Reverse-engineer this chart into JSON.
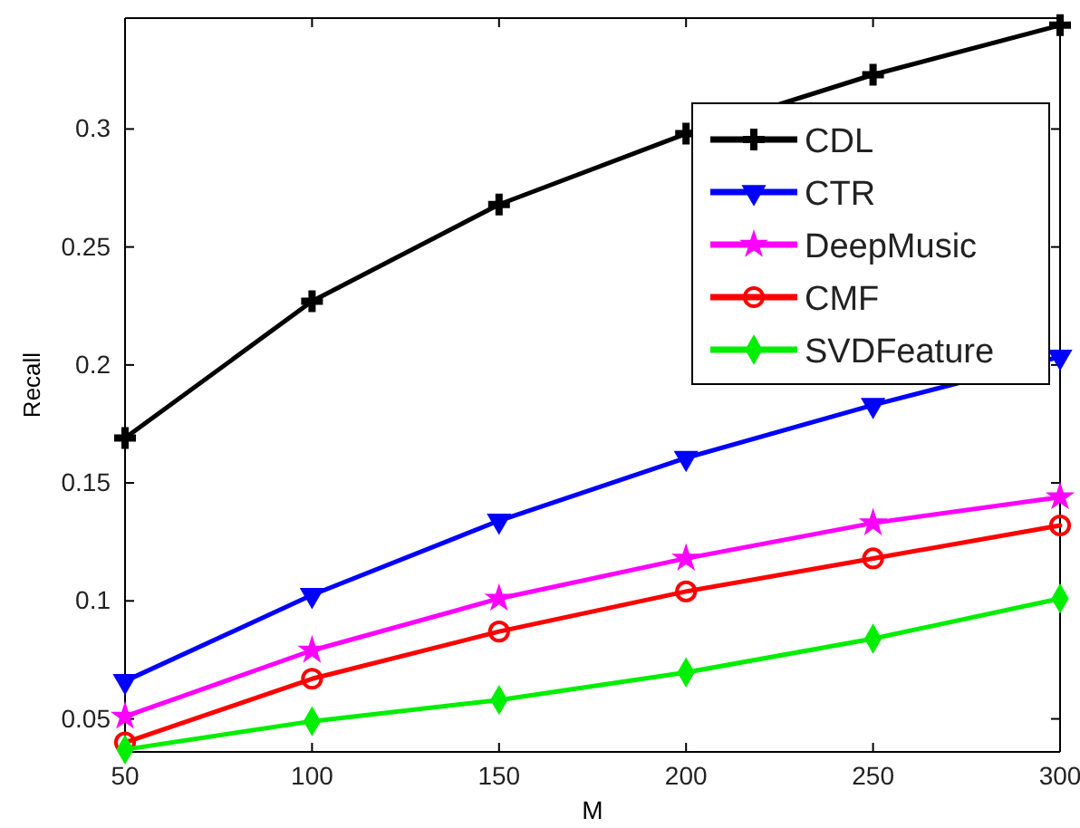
{
  "chart_data": {
    "type": "line",
    "xlabel": "M",
    "ylabel": "Recall",
    "x": [
      50,
      100,
      150,
      200,
      250,
      300
    ],
    "xlim": [
      50,
      300
    ],
    "xticks": [
      50,
      100,
      150,
      200,
      250,
      300
    ],
    "ylim": [
      0.036,
      0.347
    ],
    "yticks": [
      {
        "value": 0.05,
        "label": "0.05"
      },
      {
        "value": 0.1,
        "label": "0.1"
      },
      {
        "value": 0.15,
        "label": "0.15"
      },
      {
        "value": 0.2,
        "label": "0.2"
      },
      {
        "value": 0.25,
        "label": "0.25"
      },
      {
        "value": 0.3,
        "label": "0.3"
      }
    ],
    "grid": false,
    "legend": "top right",
    "line_style": "solid",
    "series": [
      {
        "name": "CDL",
        "color": "#000000",
        "marker": "cross",
        "values": [
          0.169,
          0.227,
          0.268,
          0.298,
          0.323,
          0.344
        ]
      },
      {
        "name": "CTR",
        "color": "#0000ff",
        "marker": "triangle",
        "values": [
          0.066,
          0.1025,
          0.134,
          0.1606,
          0.183,
          0.2035
        ]
      },
      {
        "name": "DeepMusic",
        "color": "#ff00ff",
        "marker": "star",
        "values": [
          0.051,
          0.079,
          0.101,
          0.118,
          0.133,
          0.144
        ]
      },
      {
        "name": "CMF",
        "color": "#ff0000",
        "marker": "circle",
        "values": [
          0.04,
          0.067,
          0.087,
          0.104,
          0.118,
          0.132
        ]
      },
      {
        "name": "SVDFeature",
        "color": "#00ee00",
        "marker": "diamond",
        "values": [
          0.037,
          0.049,
          0.058,
          0.0697,
          0.084,
          0.101
        ]
      }
    ]
  }
}
